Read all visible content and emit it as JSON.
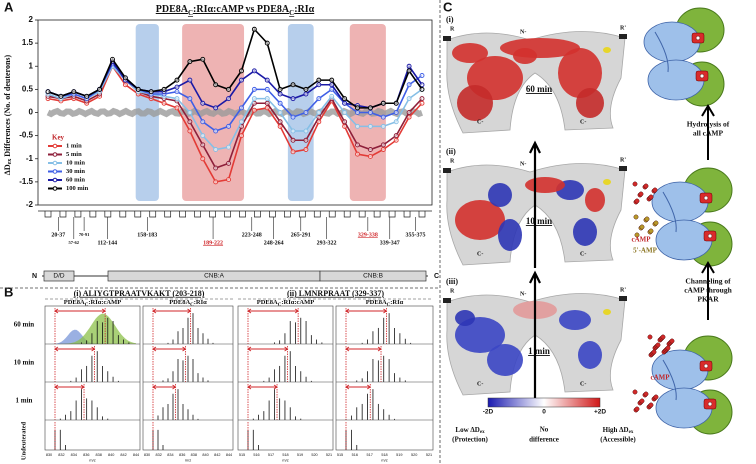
{
  "chart_data": {
    "type": "line",
    "letter": "A",
    "title": [
      "PDE8A",
      "C",
      ":RIα:cAMP vs PDE8A",
      "C",
      ":RIα"
    ],
    "ylabel": [
      "ΔD",
      "ex",
      " Differences (No. of deuterons)"
    ],
    "ylim": [
      -2,
      2
    ],
    "yticks": [
      2,
      1.5,
      1,
      0.5,
      0,
      -0.5,
      -1,
      -1.5,
      -2
    ],
    "legend_title": "Key",
    "series": [
      {
        "name": "1 min",
        "color": "#e33b36",
        "values": [
          0.3,
          0.25,
          0.3,
          0.2,
          0.35,
          1.0,
          0.6,
          0.4,
          0.3,
          0.2,
          0.1,
          -0.4,
          -1.0,
          -1.5,
          -1.45,
          -0.5,
          0.05,
          0.1,
          -0.3,
          -0.85,
          -0.8,
          -0.2,
          0.25,
          -0.3,
          -0.9,
          -0.95,
          -0.8,
          -0.6,
          -0.1,
          0.2
        ]
      },
      {
        "name": "5 min",
        "color": "#8e1f3a",
        "values": [
          0.35,
          0.3,
          0.35,
          0.25,
          0.4,
          1.1,
          0.7,
          0.45,
          0.35,
          0.3,
          0.25,
          -0.2,
          -0.7,
          -1.2,
          -1.1,
          -0.3,
          0.2,
          0.2,
          -0.2,
          -0.6,
          -0.6,
          -0.1,
          0.3,
          -0.2,
          -0.7,
          -0.8,
          -0.7,
          -0.5,
          0.0,
          0.3
        ]
      },
      {
        "name": "10 min",
        "color": "#86bfe6",
        "values": [
          0.4,
          0.3,
          0.4,
          0.3,
          0.45,
          1.0,
          0.7,
          0.45,
          0.4,
          0.35,
          0.3,
          0.0,
          -0.5,
          -0.8,
          -0.75,
          -0.2,
          0.3,
          0.3,
          0.0,
          -0.4,
          -0.4,
          0.0,
          0.35,
          0.0,
          -0.3,
          -0.3,
          -0.3,
          -0.2,
          0.3,
          0.5
        ]
      },
      {
        "name": "30 min",
        "color": "#3f5fe6",
        "values": [
          0.45,
          0.35,
          0.4,
          0.3,
          0.5,
          1.05,
          0.75,
          0.5,
          0.4,
          0.4,
          0.45,
          0.3,
          -0.2,
          -0.4,
          -0.3,
          0.1,
          0.5,
          0.5,
          0.2,
          -0.1,
          0.0,
          0.3,
          0.5,
          0.2,
          0.0,
          0.0,
          -0.1,
          0.0,
          0.6,
          0.8
        ]
      },
      {
        "name": "60 min",
        "color": "#1b1aa6",
        "values": [
          0.45,
          0.35,
          0.45,
          0.35,
          0.5,
          1.1,
          0.7,
          0.5,
          0.45,
          0.45,
          0.55,
          0.7,
          0.2,
          0.1,
          0.3,
          0.7,
          0.9,
          0.7,
          0.4,
          0.3,
          0.4,
          0.6,
          0.6,
          0.2,
          0.15,
          0.1,
          0.2,
          0.2,
          1.0,
          0.6
        ]
      },
      {
        "name": "100 min",
        "color": "#000000",
        "values": [
          0.45,
          0.35,
          0.45,
          0.35,
          0.5,
          1.15,
          0.75,
          0.5,
          0.45,
          0.5,
          0.7,
          1.1,
          1.15,
          0.6,
          0.5,
          0.9,
          1.8,
          1.5,
          0.5,
          0.6,
          0.5,
          0.7,
          0.7,
          0.3,
          0.1,
          0.1,
          0.2,
          0.2,
          0.9,
          0.5
        ]
      }
    ],
    "peptides": [
      "20-37",
      "57-62",
      "70-91",
      "112-144",
      "158-183",
      "189-222",
      "223-248",
      "248-264",
      "265-291",
      "293-322",
      "329-338",
      "339-347",
      "355-375"
    ],
    "domains": [
      "N",
      "D/D",
      "CNB:A",
      "CNB:B",
      "C"
    ]
  },
  "panel_b": {
    "letter": "B",
    "groups": [
      {
        "title": "(i) ALIYGTPRAATVKAKT (203-218)",
        "mz_ticks": [
          "830",
          "832",
          "834",
          "836",
          "838",
          "840",
          "842",
          "844"
        ]
      },
      {
        "title": "(ii) LMNRPRAAT (329-337)",
        "mz_ticks": [
          "515",
          "516",
          "517",
          "518",
          "519",
          "520",
          "521"
        ]
      }
    ],
    "columns": [
      [
        "PDE8A",
        "C",
        ":RIα:cAMP"
      ],
      [
        "PDE8A",
        "C",
        ":RIα"
      ]
    ],
    "rows": [
      "60 min",
      "10 min",
      "1 min",
      "Undeuterated"
    ],
    "axis_label": "m/z"
  },
  "panel_c": {
    "letter": "C",
    "states": [
      {
        "label": "(i)",
        "time": "60 min"
      },
      {
        "label": "(ii)",
        "time": "10 min"
      },
      {
        "label": "(iii)",
        "time": "1 min"
      }
    ],
    "sites": [
      "R",
      "R'",
      "N-",
      "C-"
    ],
    "scale": [
      "-2D",
      "0",
      "+2D"
    ],
    "scale_legend": [
      [
        "Low ΔD",
        "ex",
        "(Protection)"
      ],
      [
        "No",
        "difference"
      ],
      [
        "High ΔD",
        "ex",
        "(Accessible)"
      ]
    ],
    "steps": [
      [
        "Hydrolysis of",
        "all cAMP"
      ],
      [
        "Channeling of",
        "cAMP through",
        "PKAR"
      ]
    ],
    "ligands": [
      "cAMP",
      "5'-AMP"
    ]
  }
}
